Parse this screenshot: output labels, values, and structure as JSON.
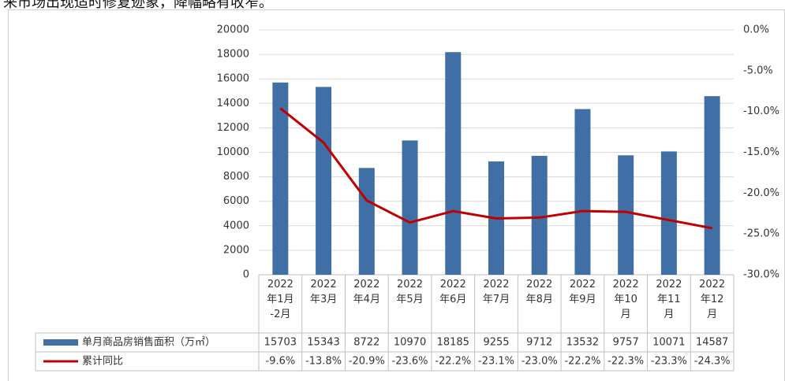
{
  "chart_data": {
    "type": "bar-line",
    "caption": "来市场出现适时修复迹象，降幅略有收窄。",
    "categories": [
      "2022\n年1月\n-2月",
      "2022\n年3月",
      "2022\n年4月",
      "2022\n年5月",
      "2022\n年6月",
      "2022\n年7月",
      "2022\n年8月",
      "2022\n年9月",
      "2022\n年10\n月",
      "2022\n年11\n月",
      "2022\n年12\n月"
    ],
    "series": [
      {
        "name": "单月商品房销售面积（万㎡）",
        "color": "#3f6fa5",
        "type": "bar",
        "values": [
          15703,
          15343,
          8722,
          10970,
          18185,
          9255,
          9712,
          13532,
          9757,
          10071,
          14587
        ]
      },
      {
        "name": "累计同比",
        "color": "#c00000",
        "type": "line",
        "axis": "y2",
        "values": [
          -9.6,
          -13.8,
          -20.9,
          -23.6,
          -22.2,
          -23.1,
          -23.0,
          -22.2,
          -22.3,
          -23.3,
          -24.3
        ],
        "value_labels": [
          "-9.6%",
          "-13.8%",
          "-20.9%",
          "-23.6%",
          "-22.2%",
          "-23.1%",
          "-23.0%",
          "-22.2%",
          "-22.3%",
          "-23.3%",
          "-24.3%"
        ]
      }
    ],
    "ylim": [
      0,
      20000
    ],
    "yticks": [
      0,
      2000,
      4000,
      6000,
      8000,
      10000,
      12000,
      14000,
      16000,
      18000,
      20000
    ],
    "y2lim": [
      -30,
      0
    ],
    "y2ticks": [
      {
        "value": 0,
        "label": "0.0%"
      },
      {
        "value": -5,
        "label": "-5.0%"
      },
      {
        "value": -10,
        "label": "-10.0%"
      },
      {
        "value": -15,
        "label": "-15.0%"
      },
      {
        "value": -20,
        "label": "-20.0%"
      },
      {
        "value": -25,
        "label": "-25.0%"
      },
      {
        "value": -30,
        "label": "-30.0%"
      }
    ],
    "grid": true
  }
}
